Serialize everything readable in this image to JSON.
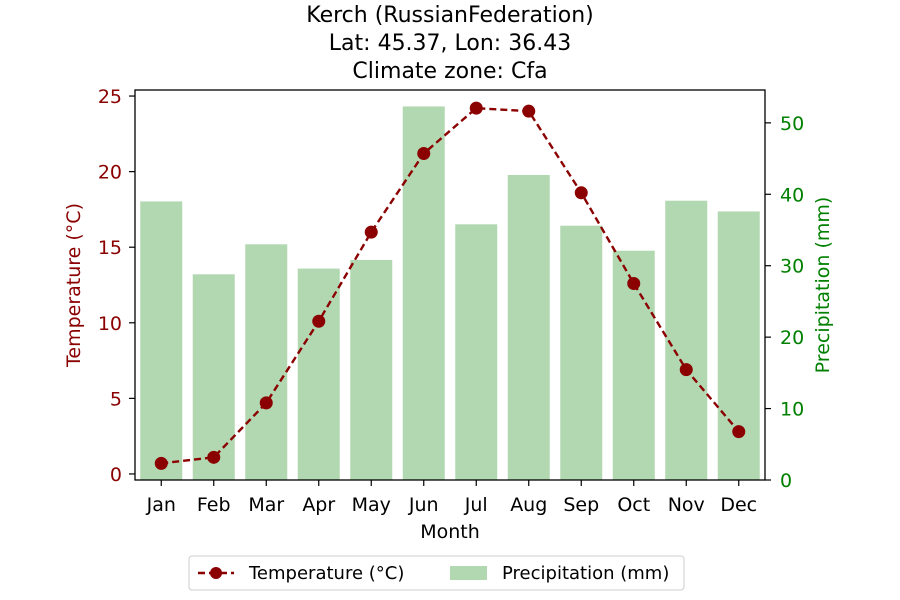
{
  "chart_data": {
    "type": "bar+line",
    "title_lines": [
      "Kerch (RussianFederation)",
      "Lat: 45.37, Lon: 36.43",
      "Climate zone: Cfa"
    ],
    "xlabel": "Month",
    "categories": [
      "Jan",
      "Feb",
      "Mar",
      "Apr",
      "May",
      "Jun",
      "Jul",
      "Aug",
      "Sep",
      "Oct",
      "Nov",
      "Dec"
    ],
    "y_left": {
      "label": "Temperature (°C)",
      "lim": [
        -0.4,
        25.4
      ],
      "ticks": [
        0,
        5,
        10,
        15,
        20,
        25
      ],
      "color": "#8b0000"
    },
    "y_right": {
      "label": "Precipitation (mm)",
      "lim": [
        0,
        54.6
      ],
      "ticks": [
        0,
        10,
        20,
        30,
        40,
        50
      ],
      "color": "#008000"
    },
    "series": [
      {
        "name": "Temperature (°C)",
        "kind": "line",
        "axis": "left",
        "color": "#8b0000",
        "style": "dashed",
        "marker": "circle",
        "values": [
          0.7,
          1.1,
          4.7,
          10.1,
          16.0,
          21.2,
          24.2,
          24.0,
          18.6,
          12.6,
          6.9,
          2.8
        ]
      },
      {
        "name": "Precipitation (mm)",
        "kind": "bar",
        "axis": "right",
        "color": "#b2d8b2",
        "values": [
          39.0,
          28.8,
          33.0,
          29.6,
          30.8,
          52.3,
          35.8,
          42.7,
          35.6,
          32.1,
          39.1,
          37.6
        ]
      }
    ],
    "legend": {
      "position": "bottom-center",
      "entries": [
        "Temperature (°C)",
        "Precipitation (mm)"
      ]
    },
    "grid": false
  }
}
